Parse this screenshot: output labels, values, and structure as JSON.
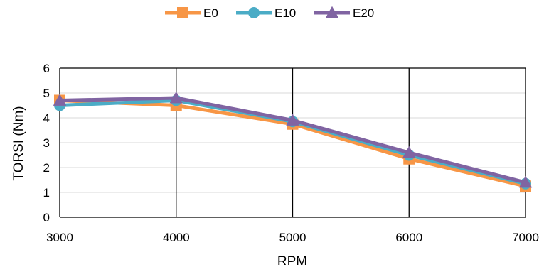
{
  "chart_data": {
    "type": "line",
    "title": "",
    "xlabel": "RPM",
    "ylabel": "TORSI (Nm)",
    "x": [
      3000,
      4000,
      5000,
      6000,
      7000
    ],
    "xticks": [
      "3000",
      "4000",
      "5000",
      "6000",
      "7000"
    ],
    "ylim": [
      0,
      6
    ],
    "yticks": [
      "0",
      "1",
      "2",
      "3",
      "4",
      "5",
      "6"
    ],
    "grid": {
      "horizontal": true,
      "vertical": true
    },
    "legend_position": "top",
    "series": [
      {
        "name": "E0",
        "values": [
          4.7,
          4.5,
          3.75,
          2.35,
          1.25
        ],
        "color": "#F79646",
        "marker": "square"
      },
      {
        "name": "E10",
        "values": [
          4.5,
          4.7,
          3.85,
          2.5,
          1.35
        ],
        "color": "#4BACC6",
        "marker": "circle"
      },
      {
        "name": "E20",
        "values": [
          4.7,
          4.8,
          3.9,
          2.6,
          1.4
        ],
        "color": "#8064A2",
        "marker": "triangle"
      }
    ]
  }
}
